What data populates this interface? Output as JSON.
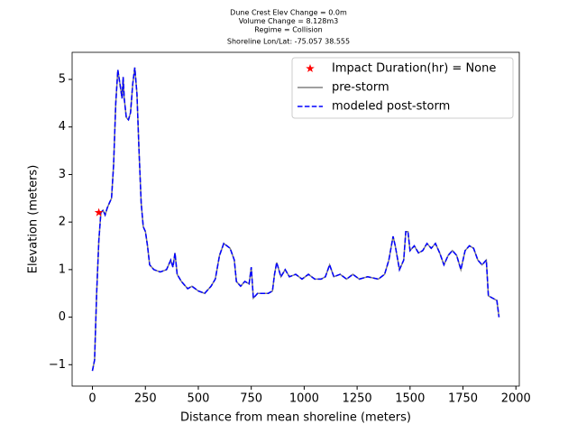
{
  "chart_data": {
    "type": "line",
    "title": [
      "Dune Crest Elev Change = 0.0m",
      "Volume Change = 8.128m3",
      "Regime = Collision",
      "Shoreline Lon/Lat: -75.057 38.555"
    ],
    "x_label": "Distance from mean shoreline (meters)",
    "y_label": "Elevation (meters)",
    "xlim": [
      -96,
      2016
    ],
    "ylim": [
      -1.45,
      5.57
    ],
    "xticks": [
      0,
      250,
      500,
      750,
      1000,
      1250,
      1500,
      1750,
      2000
    ],
    "yticks": [
      {
        "value": -1,
        "label": "−1"
      },
      0,
      1,
      2,
      3,
      4,
      5
    ],
    "legend": "upper right",
    "series": [
      {
        "name": "Impact Duration(hr) = None",
        "color": "red",
        "marker": "star",
        "x": [
          30
        ],
        "values": [
          2.2
        ]
      },
      {
        "name": "pre-storm",
        "color": "gray",
        "dash": "solid",
        "x": [
          0,
          10,
          20,
          30,
          40,
          50,
          60,
          70,
          80,
          90,
          100,
          110,
          120,
          130,
          140,
          145,
          150,
          160,
          170,
          180,
          190,
          200,
          210,
          220,
          230,
          240,
          250,
          260,
          270,
          290,
          320,
          350,
          370,
          380,
          390,
          400,
          420,
          450,
          470,
          500,
          530,
          560,
          580,
          600,
          620,
          650,
          670,
          680,
          700,
          720,
          740,
          750,
          760,
          780,
          800,
          830,
          850,
          860,
          870,
          890,
          910,
          930,
          960,
          990,
          1020,
          1050,
          1080,
          1100,
          1120,
          1140,
          1170,
          1200,
          1230,
          1260,
          1300,
          1350,
          1380,
          1400,
          1420,
          1430,
          1450,
          1470,
          1480,
          1490,
          1500,
          1520,
          1540,
          1560,
          1580,
          1600,
          1620,
          1640,
          1660,
          1680,
          1700,
          1720,
          1740,
          1760,
          1780,
          1800,
          1820,
          1840,
          1860,
          1870,
          1890,
          1910,
          1920
        ],
        "values": [
          -1.13,
          -0.9,
          0.5,
          1.6,
          2.2,
          2.25,
          2.15,
          2.3,
          2.4,
          2.5,
          3.2,
          4.5,
          5.2,
          4.9,
          4.6,
          5.05,
          4.6,
          4.2,
          4.15,
          4.3,
          4.9,
          5.25,
          4.7,
          3.5,
          2.4,
          1.9,
          1.8,
          1.5,
          1.1,
          1.0,
          0.95,
          1.0,
          1.2,
          1.05,
          1.35,
          0.9,
          0.75,
          0.6,
          0.65,
          0.55,
          0.5,
          0.65,
          0.8,
          1.3,
          1.55,
          1.45,
          1.2,
          0.75,
          0.65,
          0.75,
          0.7,
          1.05,
          0.4,
          0.5,
          0.5,
          0.5,
          0.55,
          0.9,
          1.15,
          0.85,
          1.0,
          0.85,
          0.9,
          0.8,
          0.9,
          0.8,
          0.8,
          0.85,
          1.1,
          0.85,
          0.9,
          0.8,
          0.9,
          0.8,
          0.85,
          0.8,
          0.9,
          1.2,
          1.7,
          1.5,
          1.0,
          1.2,
          1.8,
          1.8,
          1.4,
          1.5,
          1.35,
          1.4,
          1.55,
          1.45,
          1.55,
          1.35,
          1.1,
          1.3,
          1.4,
          1.3,
          1.0,
          1.4,
          1.5,
          1.45,
          1.2,
          1.1,
          1.2,
          0.45,
          0.4,
          0.35,
          0.0
        ]
      },
      {
        "name": "modeled post-storm",
        "color": "blue",
        "dash": "dashed",
        "x": [
          0,
          10,
          20,
          30,
          40,
          50,
          60,
          70,
          80,
          90,
          100,
          110,
          120,
          130,
          140,
          145,
          150,
          160,
          170,
          180,
          190,
          200,
          210,
          220,
          230,
          240,
          250,
          260,
          270,
          290,
          320,
          350,
          370,
          380,
          390,
          400,
          420,
          450,
          470,
          500,
          530,
          560,
          580,
          600,
          620,
          650,
          670,
          680,
          700,
          720,
          740,
          750,
          760,
          780,
          800,
          830,
          850,
          860,
          870,
          890,
          910,
          930,
          960,
          990,
          1020,
          1050,
          1080,
          1100,
          1120,
          1140,
          1170,
          1200,
          1230,
          1260,
          1300,
          1350,
          1380,
          1400,
          1420,
          1430,
          1450,
          1470,
          1480,
          1490,
          1500,
          1520,
          1540,
          1560,
          1580,
          1600,
          1620,
          1640,
          1660,
          1680,
          1700,
          1720,
          1740,
          1760,
          1780,
          1800,
          1820,
          1840,
          1860,
          1870,
          1890,
          1910,
          1920
        ],
        "values": [
          -1.13,
          -0.9,
          0.5,
          1.6,
          2.2,
          2.25,
          2.15,
          2.3,
          2.4,
          2.5,
          3.2,
          4.5,
          5.2,
          4.9,
          4.6,
          5.05,
          4.6,
          4.2,
          4.15,
          4.3,
          4.9,
          5.25,
          4.7,
          3.5,
          2.4,
          1.9,
          1.8,
          1.5,
          1.1,
          1.0,
          0.95,
          1.0,
          1.2,
          1.05,
          1.35,
          0.9,
          0.75,
          0.6,
          0.65,
          0.55,
          0.5,
          0.65,
          0.8,
          1.3,
          1.55,
          1.45,
          1.2,
          0.75,
          0.65,
          0.75,
          0.7,
          1.05,
          0.4,
          0.5,
          0.5,
          0.5,
          0.55,
          0.9,
          1.15,
          0.85,
          1.0,
          0.85,
          0.9,
          0.8,
          0.9,
          0.8,
          0.8,
          0.85,
          1.1,
          0.85,
          0.9,
          0.8,
          0.9,
          0.8,
          0.85,
          0.8,
          0.9,
          1.2,
          1.7,
          1.5,
          1.0,
          1.2,
          1.8,
          1.8,
          1.4,
          1.5,
          1.35,
          1.4,
          1.55,
          1.45,
          1.55,
          1.35,
          1.1,
          1.3,
          1.4,
          1.3,
          1.0,
          1.4,
          1.5,
          1.45,
          1.2,
          1.1,
          1.2,
          0.45,
          0.4,
          0.35,
          0.0
        ]
      }
    ]
  }
}
